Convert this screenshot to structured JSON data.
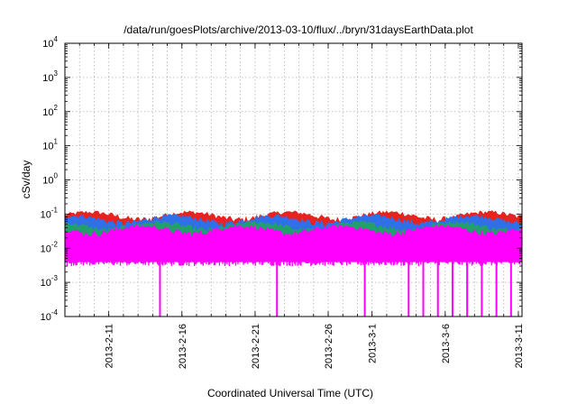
{
  "chart_data": {
    "type": "area",
    "title": "/data/run/goesPlots/archive/2013-03-10/flux/../bryn/31daysEarthData.plot",
    "xlabel": "Coordinated Universal Time (UTC)",
    "ylabel": "cSv/day",
    "yscale": "log",
    "ylim": [
      0.0001,
      10000
    ],
    "yticks": [
      {
        "base": "10",
        "exp": "-4",
        "value": 0.0001
      },
      {
        "base": "10",
        "exp": "-3",
        "value": 0.001
      },
      {
        "base": "10",
        "exp": "-2",
        "value": 0.01
      },
      {
        "base": "10",
        "exp": "-1",
        "value": 0.1
      },
      {
        "base": "10",
        "exp": "0",
        "value": 1
      },
      {
        "base": "10",
        "exp": "1",
        "value": 10
      },
      {
        "base": "10",
        "exp": "2",
        "value": 100
      },
      {
        "base": "10",
        "exp": "3",
        "value": 1000
      },
      {
        "base": "10",
        "exp": "4",
        "value": 10000
      }
    ],
    "xlim": [
      "2013-02-08",
      "2013-03-11"
    ],
    "xticks": [
      {
        "label": "2013-2-11",
        "date": "2013-02-11"
      },
      {
        "label": "2013-2-16",
        "date": "2013-02-16"
      },
      {
        "label": "2013-2-21",
        "date": "2013-02-21"
      },
      {
        "label": "2013-2-26",
        "date": "2013-02-26"
      },
      {
        "label": "2013-3-1",
        "date": "2013-03-01"
      },
      {
        "label": "2013-3-6",
        "date": "2013-03-06"
      },
      {
        "label": "2013-3-11",
        "date": "2013-03-11"
      }
    ],
    "grid": true,
    "series": [
      {
        "color": "#e8231f",
        "envelope_low": 0.005,
        "envelope_high": 0.09,
        "typical": 0.07
      },
      {
        "color": "#2f6fe8",
        "envelope_low": 0.005,
        "envelope_high": 0.07,
        "typical": 0.05
      },
      {
        "color": "#22a06b",
        "envelope_low": 0.005,
        "envelope_high": 0.045,
        "typical": 0.035
      },
      {
        "color": "#ff00ff",
        "envelope_low": 0.004,
        "envelope_high": 0.035,
        "typical": 0.025
      }
    ],
    "dropouts": [
      "2013-02-14",
      "2013-02-22",
      "2013-02-28",
      "2013-03-03",
      "2013-03-04",
      "2013-03-05",
      "2013-03-06",
      "2013-03-07",
      "2013-03-08",
      "2013-03-09",
      "2013-03-10"
    ]
  }
}
